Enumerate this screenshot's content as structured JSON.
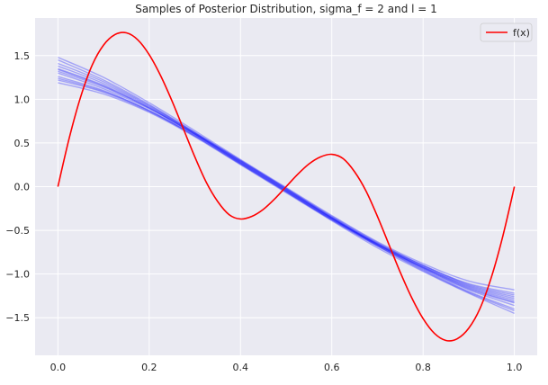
{
  "chart_data": {
    "type": "line",
    "title": "Samples of Posterior Distribution, sigma_f = 2 and l = 1",
    "xlabel": "",
    "ylabel": "",
    "xlim": [
      -0.05,
      1.05
    ],
    "ylim": [
      -1.93,
      1.93
    ],
    "x_ticks": [
      0.0,
      0.2,
      0.4,
      0.6,
      0.8,
      1.0
    ],
    "x_tick_labels": [
      "0.0",
      "0.2",
      "0.4",
      "0.6",
      "0.8",
      "1.0"
    ],
    "y_ticks": [
      1.5,
      1.0,
      0.5,
      0.0,
      -0.5,
      -1.0,
      -1.5
    ],
    "y_tick_labels": [
      "1.5",
      "1.0",
      "0.5",
      "0.0",
      "−0.5",
      "−1.0",
      "−1.5"
    ],
    "grid": true,
    "legend": {
      "position": "top-right",
      "entries": [
        {
          "label": "f(x)",
          "color": "#ff0000"
        }
      ]
    },
    "series": [
      {
        "name": "f(x)",
        "color": "#ff0000",
        "x": [
          0.0,
          0.025,
          0.05,
          0.075,
          0.1,
          0.125,
          0.15,
          0.175,
          0.2,
          0.225,
          0.25,
          0.275,
          0.3,
          0.325,
          0.35,
          0.375,
          0.4,
          0.425,
          0.45,
          0.475,
          0.5,
          0.525,
          0.55,
          0.575,
          0.6,
          0.625,
          0.65,
          0.675,
          0.7,
          0.725,
          0.75,
          0.775,
          0.8,
          0.825,
          0.85,
          0.875,
          0.9,
          0.925,
          0.95,
          0.975,
          1.0
        ],
        "y": [
          0.0,
          0.56,
          1.03,
          1.39,
          1.62,
          1.74,
          1.76,
          1.68,
          1.51,
          1.27,
          0.98,
          0.66,
          0.34,
          0.05,
          -0.17,
          -0.32,
          -0.37,
          -0.34,
          -0.26,
          -0.14,
          0.0,
          0.14,
          0.26,
          0.34,
          0.37,
          0.32,
          0.17,
          -0.05,
          -0.34,
          -0.66,
          -0.98,
          -1.27,
          -1.51,
          -1.68,
          -1.76,
          -1.74,
          -1.62,
          -1.39,
          -1.03,
          -0.56,
          0.0
        ]
      },
      {
        "name": "",
        "color": "#0000ff",
        "x": [
          0.0,
          0.1,
          0.2,
          0.3,
          0.4,
          0.5,
          0.6,
          0.7,
          0.8,
          0.9,
          1.0
        ],
        "y": [
          1.32,
          1.14,
          0.9,
          0.6,
          0.28,
          -0.04,
          -0.36,
          -0.66,
          -0.92,
          -1.15,
          -1.3
        ]
      },
      {
        "name": "",
        "color": "#0000ff",
        "x": [
          0.0,
          0.1,
          0.2,
          0.3,
          0.4,
          0.5,
          0.6,
          0.7,
          0.8,
          0.9,
          1.0
        ],
        "y": [
          1.45,
          1.22,
          0.94,
          0.62,
          0.3,
          -0.02,
          -0.34,
          -0.64,
          -0.9,
          -1.11,
          -1.22
        ]
      },
      {
        "name": "",
        "color": "#0000ff",
        "x": [
          0.0,
          0.1,
          0.2,
          0.3,
          0.4,
          0.5,
          0.6,
          0.7,
          0.8,
          0.9,
          1.0
        ],
        "y": [
          1.22,
          1.08,
          0.86,
          0.58,
          0.26,
          -0.06,
          -0.38,
          -0.68,
          -0.95,
          -1.2,
          -1.4
        ]
      },
      {
        "name": "",
        "color": "#0000ff",
        "x": [
          0.0,
          0.1,
          0.2,
          0.3,
          0.4,
          0.5,
          0.6,
          0.7,
          0.8,
          0.9,
          1.0
        ],
        "y": [
          1.38,
          1.18,
          0.92,
          0.61,
          0.29,
          -0.03,
          -0.35,
          -0.65,
          -0.91,
          -1.13,
          -1.26
        ]
      },
      {
        "name": "",
        "color": "#0000ff",
        "x": [
          0.0,
          0.1,
          0.2,
          0.3,
          0.4,
          0.5,
          0.6,
          0.7,
          0.8,
          0.9,
          1.0
        ],
        "y": [
          1.26,
          1.1,
          0.87,
          0.59,
          0.27,
          -0.05,
          -0.37,
          -0.67,
          -0.94,
          -1.18,
          -1.36
        ]
      },
      {
        "name": "",
        "color": "#0000ff",
        "x": [
          0.0,
          0.1,
          0.2,
          0.3,
          0.4,
          0.5,
          0.6,
          0.7,
          0.8,
          0.9,
          1.0
        ],
        "y": [
          1.48,
          1.25,
          0.96,
          0.64,
          0.31,
          -0.01,
          -0.33,
          -0.63,
          -0.88,
          -1.08,
          -1.18
        ]
      },
      {
        "name": "",
        "color": "#0000ff",
        "x": [
          0.0,
          0.1,
          0.2,
          0.3,
          0.4,
          0.5,
          0.6,
          0.7,
          0.8,
          0.9,
          1.0
        ],
        "y": [
          1.19,
          1.06,
          0.85,
          0.57,
          0.25,
          -0.07,
          -0.39,
          -0.7,
          -0.97,
          -1.22,
          -1.45
        ]
      },
      {
        "name": "",
        "color": "#0000ff",
        "x": [
          0.0,
          0.1,
          0.2,
          0.3,
          0.4,
          0.5,
          0.6,
          0.7,
          0.8,
          0.9,
          1.0
        ],
        "y": [
          1.35,
          1.16,
          0.91,
          0.61,
          0.29,
          -0.03,
          -0.36,
          -0.66,
          -0.93,
          -1.17,
          -1.33
        ]
      },
      {
        "name": "",
        "color": "#0000ff",
        "x": [
          0.0,
          0.1,
          0.2,
          0.3,
          0.4,
          0.5,
          0.6,
          0.7,
          0.8,
          0.9,
          1.0
        ],
        "y": [
          1.3,
          1.12,
          0.89,
          0.6,
          0.27,
          -0.05,
          -0.37,
          -0.66,
          -0.92,
          -1.14,
          -1.28
        ]
      },
      {
        "name": "",
        "color": "#0000ff",
        "x": [
          0.0,
          0.1,
          0.2,
          0.3,
          0.4,
          0.5,
          0.6,
          0.7,
          0.8,
          0.9,
          1.0
        ],
        "y": [
          1.41,
          1.2,
          0.93,
          0.62,
          0.3,
          -0.02,
          -0.35,
          -0.65,
          -0.9,
          -1.12,
          -1.24
        ]
      },
      {
        "name": "",
        "color": "#0000ff",
        "x": [
          0.0,
          0.1,
          0.2,
          0.3,
          0.4,
          0.5,
          0.6,
          0.7,
          0.8,
          0.9,
          1.0
        ],
        "y": [
          1.24,
          1.09,
          0.87,
          0.58,
          0.26,
          -0.06,
          -0.38,
          -0.68,
          -0.96,
          -1.21,
          -1.42
        ]
      },
      {
        "name": "",
        "color": "#0000ff",
        "x": [
          0.0,
          0.1,
          0.2,
          0.3,
          0.4,
          0.5,
          0.6,
          0.7,
          0.8,
          0.9,
          1.0
        ],
        "y": [
          1.34,
          1.15,
          0.9,
          0.6,
          0.28,
          -0.04,
          -0.36,
          -0.67,
          -0.93,
          -1.16,
          -1.32
        ]
      }
    ]
  }
}
